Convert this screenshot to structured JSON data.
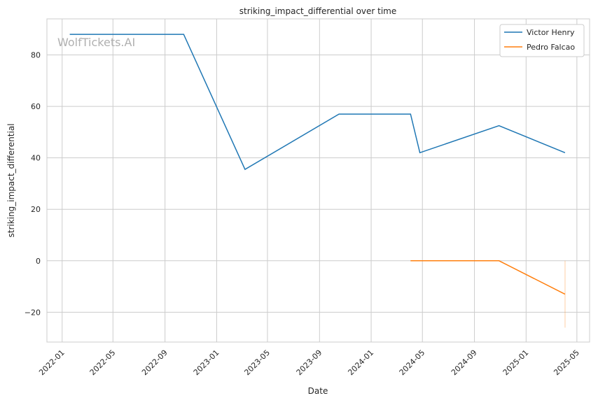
{
  "chart_data": {
    "type": "line",
    "title": "striking_impact_differential over time",
    "xlabel": "Date",
    "ylabel": "striking_impact_differential",
    "watermark": "WolfTickets.AI",
    "xlim": [
      "2021-11-26",
      "2025-05-31"
    ],
    "ylim": [
      -31.6,
      94
    ],
    "x_ticks": [
      "2022-01",
      "2022-05",
      "2022-09",
      "2023-01",
      "2023-05",
      "2023-09",
      "2024-01",
      "2024-05",
      "2024-09",
      "2025-01",
      "2025-05"
    ],
    "y_ticks": [
      -20,
      0,
      20,
      40,
      60,
      80
    ],
    "grid": true,
    "legend_position": "top-right",
    "series": [
      {
        "name": "Victor Henry",
        "color": "#1f77b4",
        "points": [
          [
            "2022-01-19",
            88
          ],
          [
            "2022-10-15",
            88
          ],
          [
            "2023-03-09",
            35.5
          ],
          [
            "2023-10-17",
            57
          ],
          [
            "2024-04-03",
            57
          ],
          [
            "2024-04-25",
            42
          ],
          [
            "2024-10-29",
            52.5
          ],
          [
            "2025-04-03",
            42
          ]
        ]
      },
      {
        "name": "Pedro Falcao",
        "color": "#ff7f0e",
        "points": [
          [
            "2024-04-03",
            0
          ],
          [
            "2024-10-29",
            0
          ],
          [
            "2025-04-03",
            -13
          ]
        ],
        "band": {
          "date": "2025-04-03",
          "low": -26,
          "high": 0
        }
      }
    ]
  }
}
